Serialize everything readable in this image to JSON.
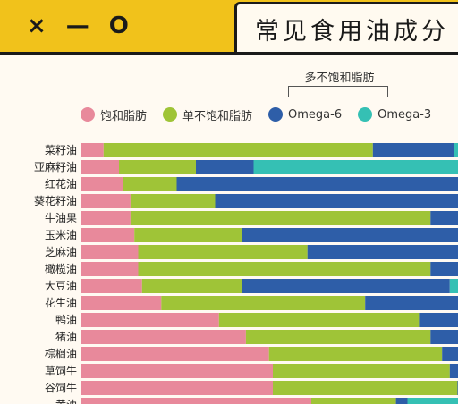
{
  "window": {
    "controls": [
      "×",
      "—",
      "O"
    ]
  },
  "title": "常见食用油成分",
  "legend_group_label": "多不饱和脂肪",
  "colors": {
    "saturated": "#e8899b",
    "mono": "#9fc437",
    "omega6": "#2e5ea8",
    "omega3": "#35c0b4",
    "background": "#f1c21b",
    "panel": "#fffaf2"
  },
  "chart_data": {
    "type": "bar",
    "orientation": "horizontal",
    "stacked": true,
    "title": "常见食用油成分",
    "categories": [
      "菜籽油",
      "亚麻籽油",
      "红花油",
      "葵花籽油",
      "牛油果",
      "玉米油",
      "芝麻油",
      "橄榄油",
      "大豆油",
      "花生油",
      "鸭油",
      "猪油",
      "棕榈油",
      "草饲牛",
      "谷饲牛",
      "黄油"
    ],
    "series": [
      {
        "name": "饱和脂肪",
        "values": [
          6,
          10,
          11,
          13,
          13,
          14,
          15,
          15,
          16,
          21,
          36,
          43,
          49,
          50,
          50,
          60
        ]
      },
      {
        "name": "单不饱和脂肪",
        "values": [
          70,
          20,
          14,
          22,
          78,
          28,
          44,
          76,
          26,
          53,
          52,
          48,
          45,
          46,
          48,
          22
        ]
      },
      {
        "name": "Omega-6",
        "values": [
          21,
          15,
          75,
          65,
          9,
          58,
          41,
          9,
          54,
          26,
          11,
          9,
          6,
          4,
          2,
          3
        ]
      },
      {
        "name": "Omega-3",
        "values": [
          3,
          55,
          0,
          0,
          0,
          0,
          0,
          0,
          4,
          0,
          1,
          0,
          0,
          0,
          0,
          15
        ]
      }
    ],
    "xlim": [
      0,
      100
    ]
  }
}
